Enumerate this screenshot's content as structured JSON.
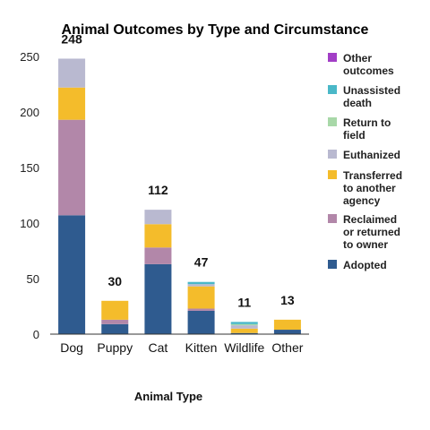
{
  "chart_data": {
    "type": "bar",
    "stacked": true,
    "title": "Animal Outcomes by Type and Circumstance",
    "xlabel": "Animal Type",
    "ylabel": "",
    "ylim": [
      0,
      250
    ],
    "yticks": [
      0,
      50,
      100,
      150,
      200,
      250
    ],
    "grid": false,
    "legend_position": "right",
    "categories": [
      "Dog",
      "Puppy",
      "Cat",
      "Kitten",
      "Wildlife",
      "Other"
    ],
    "totals": [
      248,
      30,
      112,
      47,
      11,
      13
    ],
    "series": [
      {
        "name": "Adopted",
        "color": "#2f5b8f",
        "values": [
          107,
          9,
          63,
          21,
          1,
          4
        ]
      },
      {
        "name": "Reclaimed or returned to owner",
        "color": "#b287a9",
        "values": [
          86,
          4,
          15,
          2,
          0,
          0
        ]
      },
      {
        "name": "Transferred to another agency",
        "color": "#f4bc2b",
        "values": [
          29,
          17,
          21,
          20,
          4,
          9
        ]
      },
      {
        "name": "Euthanized",
        "color": "#b9b9d0",
        "values": [
          26,
          0,
          13,
          2,
          3,
          0
        ]
      },
      {
        "name": "Return to field",
        "color": "#a8d8a8",
        "values": [
          0,
          0,
          0,
          0,
          1,
          0
        ]
      },
      {
        "name": "Unassisted death",
        "color": "#4ab8c8",
        "values": [
          0,
          0,
          0,
          2,
          2,
          0
        ]
      },
      {
        "name": "Other outcomes",
        "color": "#a23ec6",
        "values": [
          0,
          0,
          0,
          0,
          0,
          0
        ]
      }
    ],
    "legend_order": [
      "Other outcomes",
      "Unassisted death",
      "Return to field",
      "Euthanized",
      "Transferred to another agency",
      "Reclaimed or returned to owner",
      "Adopted"
    ]
  }
}
